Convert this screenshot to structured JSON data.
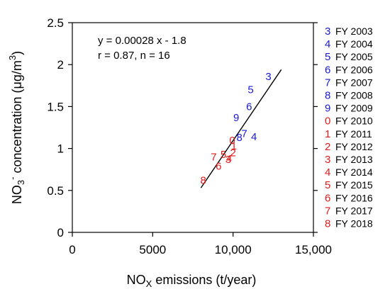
{
  "chart_data": {
    "type": "scatter",
    "xlabel_main": "NO",
    "xlabel_sub": "X",
    "xlabel_rest": " emissions (t/year)",
    "ylabel_main": "NO",
    "ylabel_sub": "3",
    "ylabel_sup": "-",
    "ylabel_mid": " concentration (μg/m",
    "ylabel_sup2": "3",
    "ylabel_end": ")",
    "xlim": [
      0,
      15000
    ],
    "ylim": [
      0,
      2.5
    ],
    "x_ticks": [
      {
        "value": 0,
        "label": "0"
      },
      {
        "value": 5000,
        "label": "5000"
      },
      {
        "value": 10000,
        "label": "10,000"
      },
      {
        "value": 15000,
        "label": "15,000"
      }
    ],
    "y_ticks": [
      {
        "value": 0,
        "label": "0"
      },
      {
        "value": 0.5,
        "label": "0.5"
      },
      {
        "value": 1,
        "label": "1"
      },
      {
        "value": 1.5,
        "label": "1.5"
      },
      {
        "value": 2,
        "label": "2"
      },
      {
        "value": 2.5,
        "label": "2.5"
      }
    ],
    "regression": {
      "equation": "y = 0.00028 x - 1.8",
      "stats": "r = 0.87, n = 16",
      "x_start": 8000,
      "x_end": 13000,
      "y_start": 0.53,
      "y_end": 1.94
    },
    "points": [
      {
        "marker": "3",
        "year": "FY 2003",
        "x": 12200,
        "y": 1.86,
        "color": "#1a1ad6"
      },
      {
        "marker": "4",
        "year": "FY 2004",
        "x": 11300,
        "y": 1.14,
        "color": "#1a1ad6"
      },
      {
        "marker": "5",
        "year": "FY 2005",
        "x": 11100,
        "y": 1.7,
        "color": "#1a1ad6"
      },
      {
        "marker": "6",
        "year": "FY 2006",
        "x": 11000,
        "y": 1.5,
        "color": "#1a1ad6"
      },
      {
        "marker": "7",
        "year": "FY 2007",
        "x": 10700,
        "y": 1.18,
        "color": "#1a1ad6"
      },
      {
        "marker": "8",
        "year": "FY 2008",
        "x": 10400,
        "y": 1.13,
        "color": "#1a1ad6"
      },
      {
        "marker": "9",
        "year": "FY 2009",
        "x": 10200,
        "y": 1.37,
        "color": "#1a1ad6"
      },
      {
        "marker": "0",
        "year": "FY 2010",
        "x": 9950,
        "y": 1.1,
        "color": "#e31a1a"
      },
      {
        "marker": "1",
        "year": "FY 2011",
        "x": 10050,
        "y": 1.03,
        "color": "#e31a1a"
      },
      {
        "marker": "2",
        "year": "FY 2012",
        "x": 10000,
        "y": 0.95,
        "color": "#e31a1a"
      },
      {
        "marker": "3",
        "year": "FY 2013",
        "x": 9700,
        "y": 0.87,
        "color": "#e31a1a"
      },
      {
        "marker": "4",
        "year": "FY 2014",
        "x": 9750,
        "y": 0.88,
        "color": "#e31a1a"
      },
      {
        "marker": "5",
        "year": "FY 2015",
        "x": 9400,
        "y": 0.93,
        "color": "#e31a1a"
      },
      {
        "marker": "6",
        "year": "FY 2016",
        "x": 9100,
        "y": 0.79,
        "color": "#e31a1a"
      },
      {
        "marker": "7",
        "year": "FY 2017",
        "x": 8800,
        "y": 0.9,
        "color": "#e31a1a"
      },
      {
        "marker": "8",
        "year": "FY 2018",
        "x": 8150,
        "y": 0.62,
        "color": "#e31a1a"
      }
    ],
    "legend_position": "right"
  },
  "colors": {
    "blue": "#1a1ad6",
    "red": "#e31a1a",
    "axis": "#000000"
  }
}
